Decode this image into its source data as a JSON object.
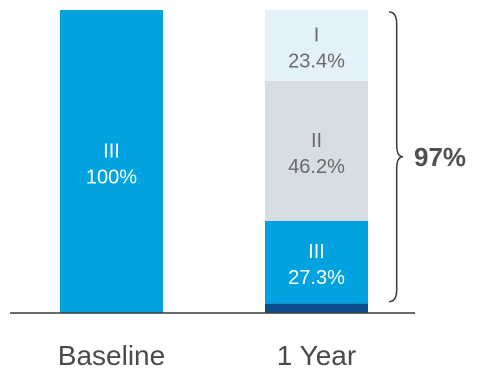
{
  "chart_data": {
    "type": "bar",
    "stacked": true,
    "categories": [
      "Baseline",
      "1 Year"
    ],
    "bars": [
      {
        "category": "Baseline",
        "segments": [
          {
            "name": "III",
            "value": 100,
            "label": "100%",
            "color": "#00a3e0",
            "text_color": "#ffffff"
          }
        ]
      },
      {
        "category": "1 Year",
        "segments": [
          {
            "name": "IV",
            "value": 3.1,
            "label": "",
            "color": "#0a4f8c",
            "text_color": "#ffffff"
          },
          {
            "name": "III",
            "value": 27.3,
            "label": "27.3%",
            "color": "#00a3e0",
            "text_color": "#ffffff"
          },
          {
            "name": "II",
            "value": 46.2,
            "label": "46.2%",
            "color": "#d6dde4",
            "text_color": "#6a6a6a"
          },
          {
            "name": "I",
            "value": 23.4,
            "label": "23.4%",
            "color": "#e3f1fb",
            "text_color": "#6a6a6a"
          }
        ]
      }
    ],
    "ylim": [
      0,
      100
    ],
    "grid": false,
    "annotation": {
      "text": "97%",
      "spans_segments": [
        "III",
        "II",
        "I"
      ],
      "bar": "1 Year"
    }
  }
}
